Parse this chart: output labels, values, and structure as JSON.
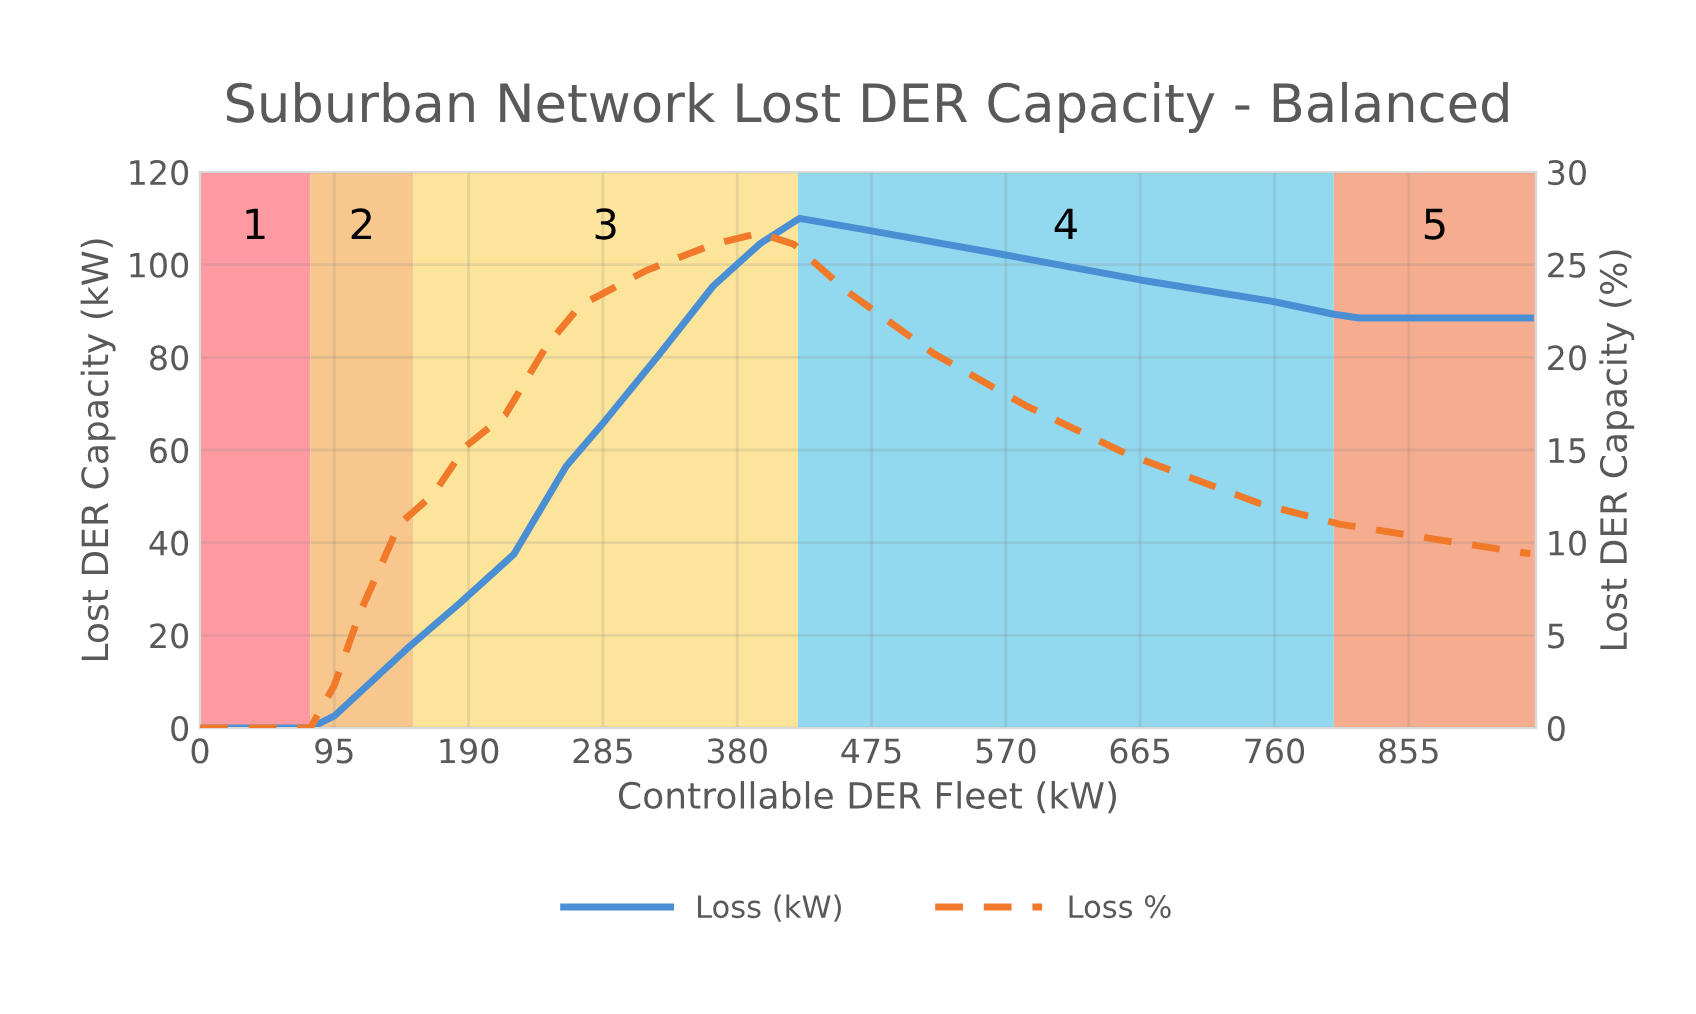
{
  "chart_data": {
    "type": "line",
    "title": "Suburban Network Lost DER Capacity - Balanced",
    "xlabel": "Controllable DER Fleet (kW)",
    "ylabel": "Lost DER Capacity (kW)",
    "y2label": "Lost DER Capacity (%)",
    "series": [
      {
        "name": "Loss (kW)",
        "color": "#4a8fd4",
        "line_style": "solid",
        "x": [
          0,
          78,
          95,
          146,
          184,
          222,
          259,
          287,
          325,
          363,
          396,
          424,
          471,
          566,
          665,
          760,
          802,
          820,
          941
        ],
        "values": [
          0,
          0,
          2.6,
          17,
          27,
          37.5,
          56.5,
          66.5,
          80.7,
          95.4,
          104.5,
          110,
          107.5,
          102.3,
          96.7,
          92,
          89.3,
          88.5,
          88.5
        ]
      },
      {
        "name": "Loss %",
        "color": "#f07a2a",
        "line_style": "dashed",
        "axis": "y2",
        "x": [
          0,
          78,
          95,
          113,
          141,
          165,
          188,
          216,
          245,
          269,
          316,
          363,
          396,
          420,
          457,
          519,
          584,
          655,
          750,
          806,
          881,
          941
        ],
        "values": [
          0,
          0,
          2.3,
          6.2,
          11,
          12.6,
          15.2,
          16.9,
          20.6,
          22.8,
          24.7,
          26.1,
          26.7,
          26.1,
          23.6,
          20.2,
          17.4,
          14.8,
          12.1,
          11,
          10.1,
          9.4
        ]
      }
    ],
    "bands": [
      {
        "axis": "x",
        "from": 0,
        "to": 78,
        "label": "1",
        "color": "#ff9aa2"
      },
      {
        "axis": "x",
        "from": 78,
        "to": 151,
        "label": "2",
        "color": "#f8c78e"
      },
      {
        "axis": "x",
        "from": 151,
        "to": 423,
        "label": "3",
        "color": "#fce59b"
      },
      {
        "axis": "x",
        "from": 423,
        "to": 802,
        "label": "4",
        "color": "#92d8ee"
      },
      {
        "axis": "x",
        "from": 802,
        "to": 945,
        "label": "5",
        "color": "#f6ad8f"
      }
    ],
    "xlim": [
      0,
      945
    ],
    "xticks": [
      0,
      95,
      190,
      285,
      380,
      475,
      570,
      665,
      760,
      855
    ],
    "ylim": [
      0,
      120
    ],
    "yticks": [
      0,
      20,
      40,
      60,
      80,
      100,
      120
    ],
    "y2lim": [
      0,
      30
    ],
    "y2ticks": [
      0,
      5,
      10,
      15,
      20,
      25,
      30
    ],
    "grid": true,
    "legend": "bottom"
  }
}
